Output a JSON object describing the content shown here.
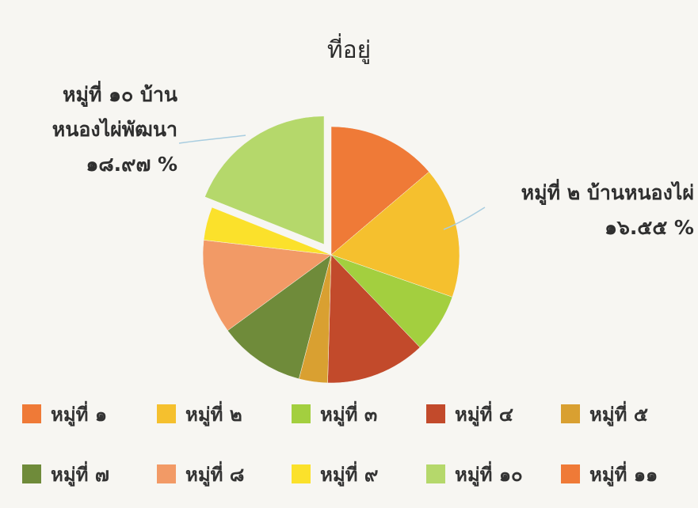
{
  "chart_data": {
    "type": "pie",
    "title": "ที่อยู่",
    "slices": [
      {
        "label": "หมู่ที่ ๑",
        "value": 13.8,
        "color": "#ef7a37"
      },
      {
        "label": "หมู่ที่ ๒",
        "value": 16.55,
        "color": "#f5c02e"
      },
      {
        "label": "หมู่ที่ ๓",
        "value": 7.5,
        "color": "#a3cf3f"
      },
      {
        "label": "หมู่ที่ ๔",
        "value": 12.6,
        "color": "#c24a2b"
      },
      {
        "label": "หมู่ที่ ๕",
        "value": 3.6,
        "color": "#d9a031"
      },
      {
        "label": "หมู่ที่ ๗",
        "value": 10.9,
        "color": "#6f8b3a"
      },
      {
        "label": "หมู่ที่ ๘",
        "value": 11.9,
        "color": "#f29a66"
      },
      {
        "label": "หมู่ที่ ๙",
        "value": 4.2,
        "color": "#fbe12b"
      },
      {
        "label": "หมู่ที่ ๑๐",
        "value": 18.97,
        "color": "#b5d86b",
        "exploded": true
      }
    ],
    "legend": [
      {
        "label": "หมู่ที่ ๑",
        "color": "#ef7a37"
      },
      {
        "label": "หมู่ที่ ๒",
        "color": "#f5c02e"
      },
      {
        "label": "หมู่ที่ ๓",
        "color": "#a3cf3f"
      },
      {
        "label": "หมู่ที่ ๔",
        "color": "#c24a2b"
      },
      {
        "label": "หมู่ที่ ๕",
        "color": "#d9a031"
      },
      {
        "label": "หมู่ที่ ๗",
        "color": "#6f8b3a"
      },
      {
        "label": "หมู่ที่ ๘",
        "color": "#f29a66"
      },
      {
        "label": "หมู่ที่ ๙",
        "color": "#fbe12b"
      },
      {
        "label": "หมู่ที่ ๑๐",
        "color": "#b5d86b"
      },
      {
        "label": "หมู่ที่ ๑๑",
        "color": "#ef7a37"
      }
    ],
    "legend_position": "bottom",
    "annotations": {
      "left": {
        "line1": "หมู่ที่ ๑๐ บ้าน",
        "line2": "หนองไผ่พัฒนา",
        "line3": "๑๘.๙๗ %"
      },
      "right": {
        "line1": "หมู่ที่ ๒ บ้านหนองไผ่",
        "line2": "๑๖.๕๕ %"
      }
    }
  }
}
